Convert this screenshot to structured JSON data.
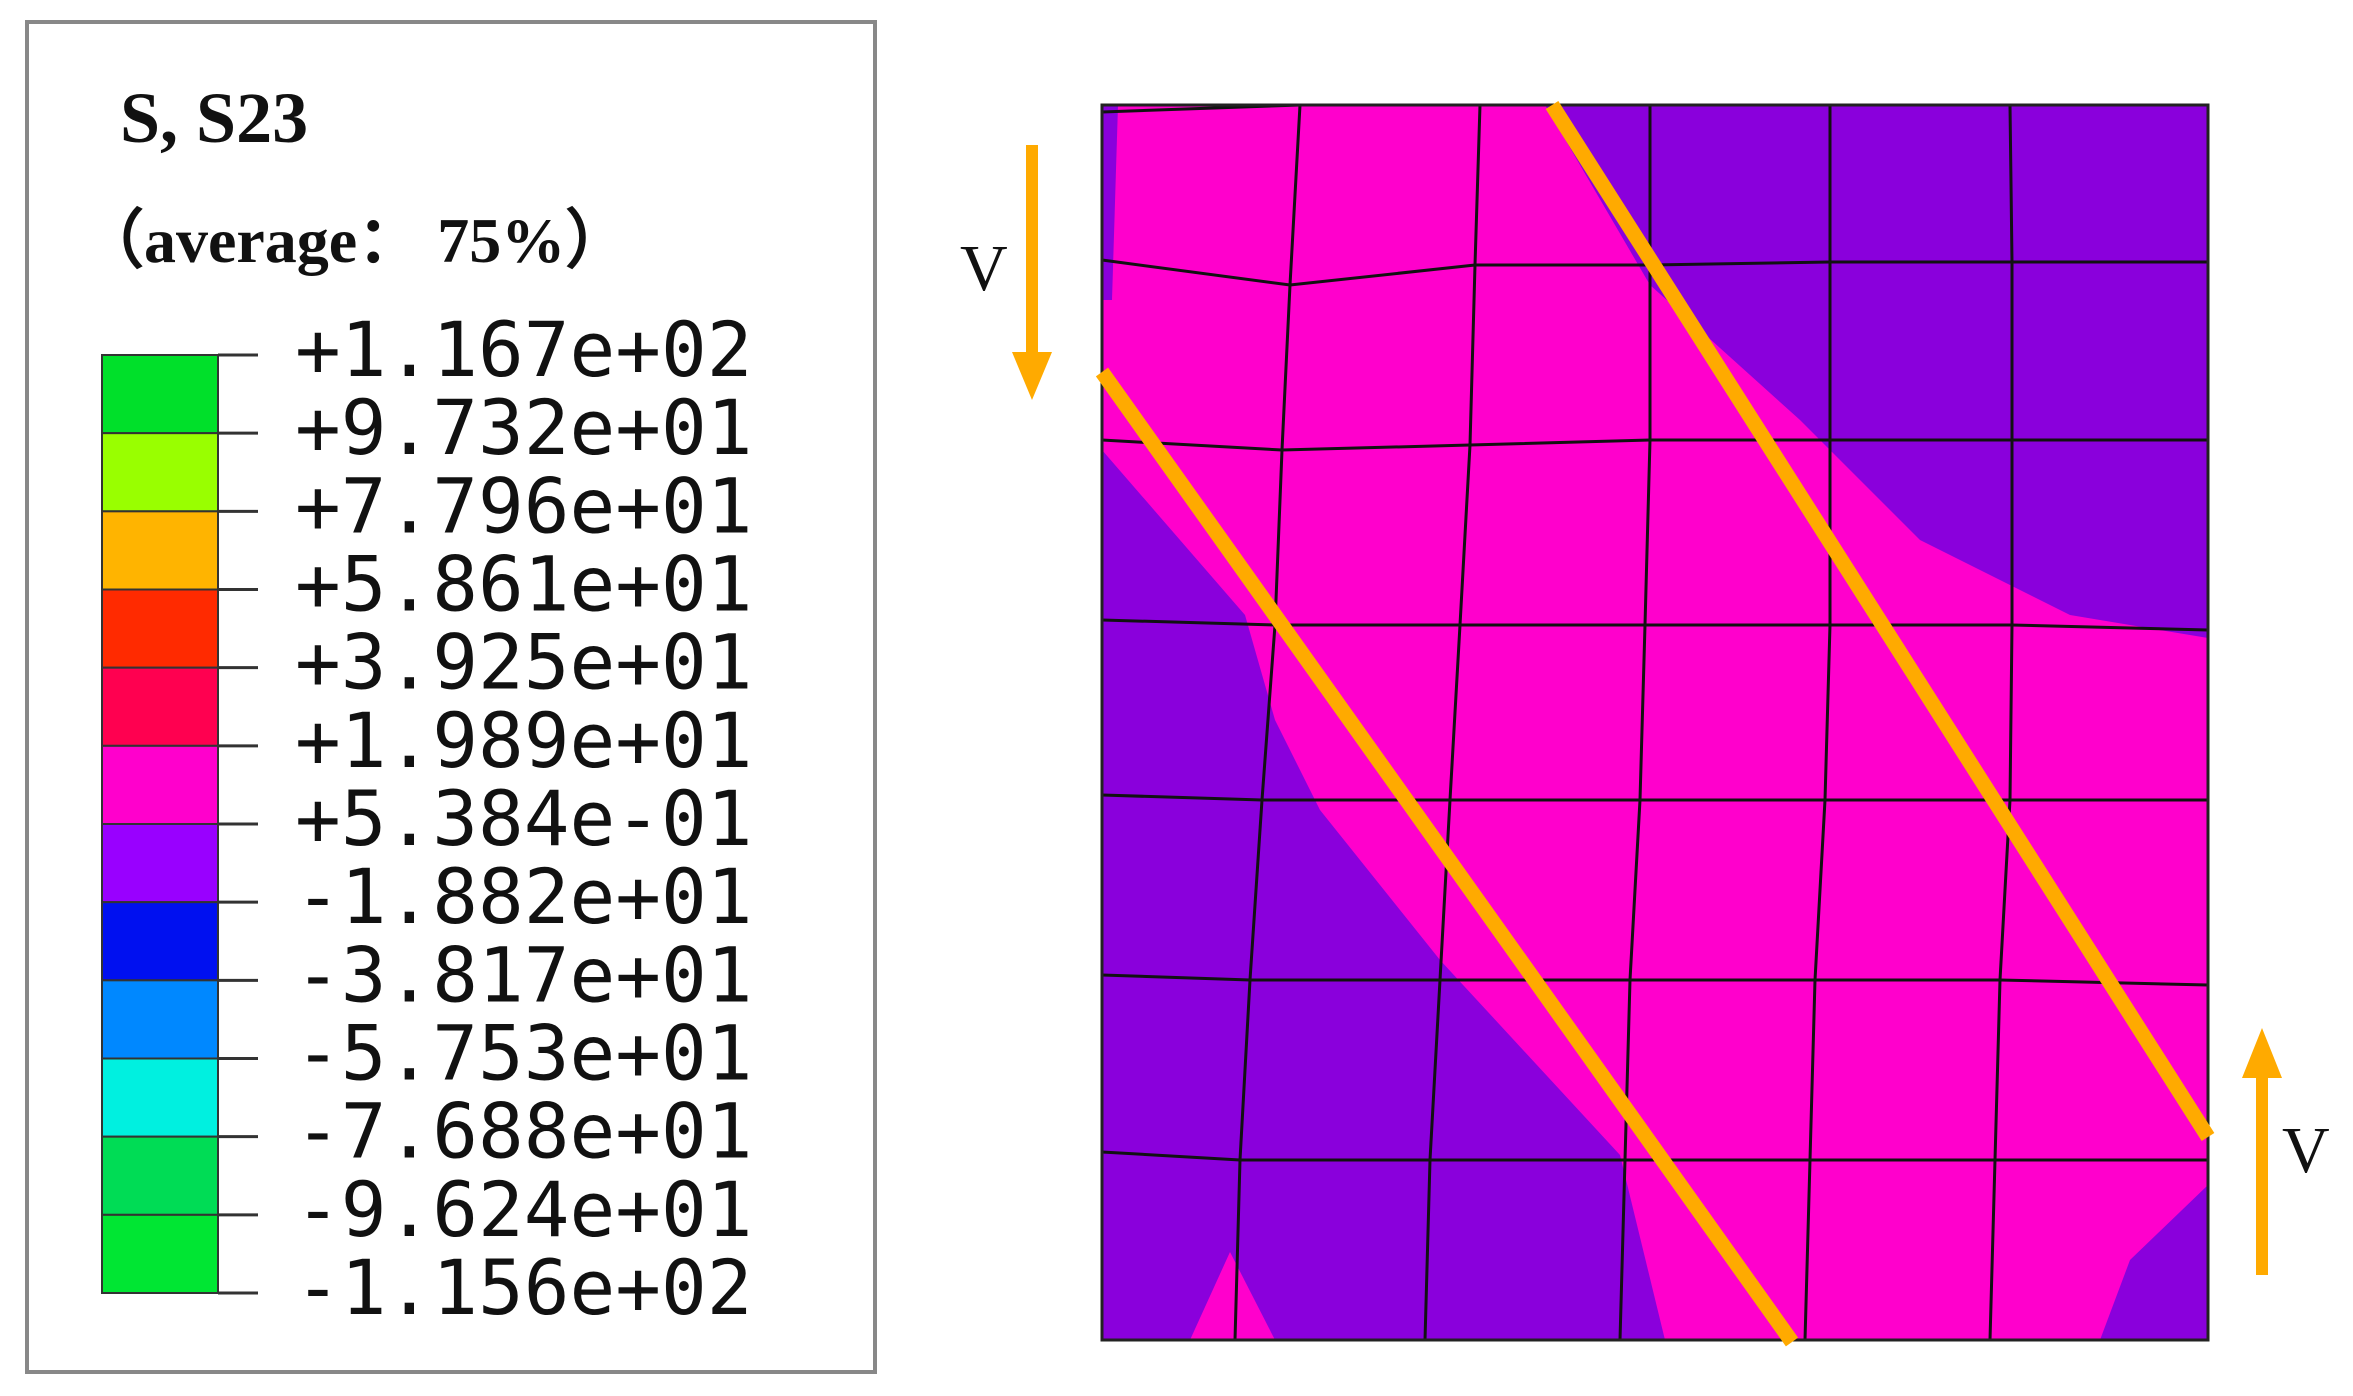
{
  "legend": {
    "title": "S, S23",
    "subtitle": "（average： 75%）",
    "labels": [
      "+1.167e+02",
      "+9.732e+01",
      "+7.796e+01",
      "+5.861e+01",
      "+3.925e+01",
      "+1.989e+01",
      "+5.384e-01",
      "-1.882e+01",
      "-3.817e+01",
      "-5.753e+01",
      "-7.688e+01",
      "-9.624e+01",
      "-1.156e+02"
    ],
    "colors": [
      "#00e02a",
      "#99ff00",
      "#ffb400",
      "#ff2a00",
      "#ff0050",
      "#ff00cc",
      "#9900ff",
      "#0010f0",
      "#0088ff",
      "#00f0e0",
      "#00dc55",
      "#00e633"
    ]
  },
  "arrows": [
    {
      "label": "V"
    },
    {
      "label": "V"
    }
  ]
}
